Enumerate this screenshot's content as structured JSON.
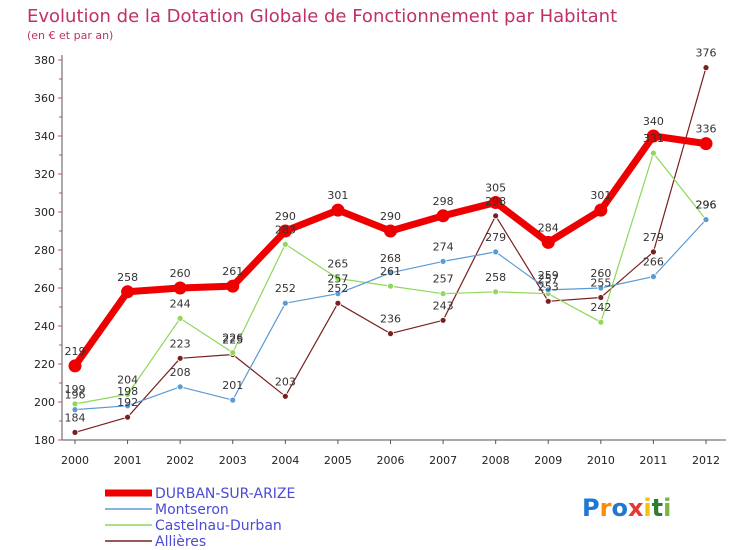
{
  "chart_data": {
    "type": "line",
    "title": "Evolution de la Dotation Globale de Fonctionnement par Habitant",
    "subtitle": "(en € et par an)",
    "xlabel": "",
    "ylabel": "",
    "x": [
      "2000",
      "2001",
      "2002",
      "2003",
      "2004",
      "2005",
      "2006",
      "2007",
      "2008",
      "2009",
      "2010",
      "2011",
      "2012"
    ],
    "ylim": [
      180,
      380
    ],
    "yticks": [
      180,
      200,
      220,
      240,
      260,
      280,
      300,
      320,
      340,
      360,
      380
    ],
    "grid": false,
    "legend_position": "bottom-left",
    "series": [
      {
        "name": "DURBAN-SUR-ARIZE",
        "color": "#ee0000",
        "values": [
          219,
          258,
          260,
          261,
          290,
          301,
          290,
          298,
          305,
          284,
          301,
          340,
          336
        ]
      },
      {
        "name": "Montseron",
        "color": "#5b9bd5",
        "values": [
          196,
          198,
          208,
          201,
          252,
          257,
          268,
          274,
          279,
          259,
          260,
          266,
          296
        ]
      },
      {
        "name": "Castelnau-Durban",
        "color": "#8ed85a",
        "values": [
          199,
          204,
          244,
          226,
          283,
          265,
          261,
          257,
          258,
          257,
          242,
          331,
          296
        ]
      },
      {
        "name": "Allières",
        "color": "#7a1f1f",
        "values": [
          184,
          192,
          223,
          225,
          203,
          252,
          236,
          243,
          298,
          253,
          255,
          279,
          376
        ]
      }
    ],
    "value_labels": [
      {
        "series": 0,
        "text": [
          "219",
          "258",
          "260",
          "261",
          "290",
          "301",
          "290",
          "298",
          "305",
          "284",
          "301",
          "340",
          "336"
        ]
      },
      {
        "series": 1,
        "text": [
          "196",
          "198",
          "208",
          "201",
          "252",
          "257",
          "268",
          "274",
          "279",
          "259",
          "260",
          "266",
          "296"
        ]
      },
      {
        "series": 2,
        "text": [
          "199",
          "204",
          "244",
          "226",
          "283",
          "265",
          "261",
          "257",
          "258",
          "257",
          "242",
          "331",
          "296"
        ]
      },
      {
        "series": 3,
        "text": [
          "184",
          "192",
          "223",
          "225",
          "203",
          "252",
          "236",
          "243",
          "298",
          "253",
          "255",
          "279",
          "376"
        ]
      }
    ]
  },
  "logo": {
    "text": "Proxiti",
    "colors": [
      "#1f78d1",
      "#ff8c00",
      "#1f78d1",
      "#e53935",
      "#f4c20d",
      "#2e7d32",
      "#7cb342"
    ]
  },
  "colors": {
    "title": "#c0306a",
    "axis": "#555555",
    "legend_text": "#4b4bd6",
    "tick_mark": "#d44a6a"
  }
}
